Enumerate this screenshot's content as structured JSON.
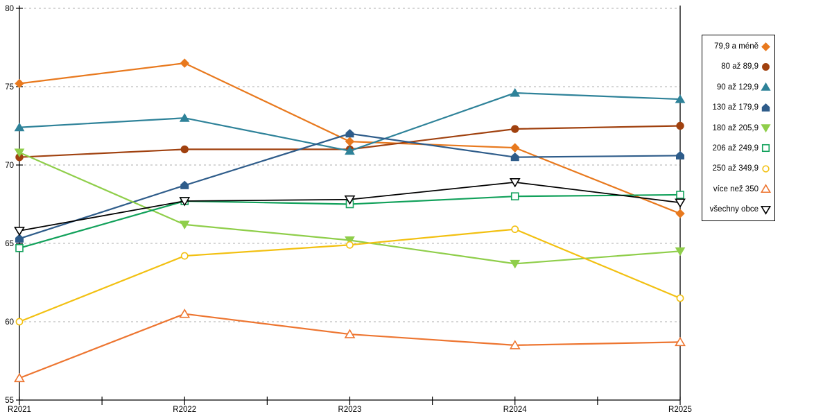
{
  "chart_data": {
    "type": "line",
    "title": "",
    "xlabel": "",
    "ylabel": "",
    "categories": [
      "R2021",
      "R2022",
      "R2023",
      "R2024",
      "R2025"
    ],
    "ylim": [
      55,
      80
    ],
    "yticks": [
      55,
      60,
      65,
      70,
      75,
      80
    ],
    "grid": "horizontal-dashed",
    "legend_position": "right",
    "gridline_color": "#ADADAD",
    "axis_color": "#000000",
    "series": [
      {
        "name": "79,9 a méně",
        "color": "#E8791E",
        "marker": "diamond",
        "fill": "solid",
        "values": [
          75.2,
          76.5,
          71.5,
          71.1,
          66.9
        ]
      },
      {
        "name": "80 až 89,9",
        "color": "#A0410F",
        "marker": "circle",
        "fill": "solid",
        "values": [
          70.5,
          71.0,
          71.0,
          72.3,
          72.5
        ]
      },
      {
        "name": "90 až 129,9",
        "color": "#2E8299",
        "marker": "triangle-up",
        "fill": "solid",
        "values": [
          72.4,
          73.0,
          70.9,
          74.6,
          74.2
        ]
      },
      {
        "name": "130 až 179,9",
        "color": "#2E5C8A",
        "marker": "pentagon",
        "fill": "solid",
        "values": [
          65.3,
          68.7,
          72.0,
          70.5,
          70.6
        ]
      },
      {
        "name": "180 až 205,9",
        "color": "#8FCE4A",
        "marker": "triangle-down",
        "fill": "solid",
        "values": [
          70.8,
          66.2,
          65.2,
          63.7,
          64.5
        ]
      },
      {
        "name": "206 až 249,9",
        "color": "#12A15B",
        "marker": "square",
        "fill": "open",
        "values": [
          64.7,
          67.7,
          67.5,
          68.0,
          68.1
        ]
      },
      {
        "name": "250 až 349,9",
        "color": "#F2C011",
        "marker": "circle",
        "fill": "open",
        "values": [
          60.0,
          64.2,
          64.9,
          65.9,
          61.5
        ]
      },
      {
        "name": "více než 350",
        "color": "#ED7530",
        "marker": "triangle-up",
        "fill": "open",
        "values": [
          56.4,
          60.5,
          59.2,
          58.5,
          58.7
        ]
      },
      {
        "name": "všechny obce",
        "color": "#000000",
        "marker": "triangle-down",
        "fill": "open",
        "values": [
          65.8,
          67.7,
          67.8,
          68.9,
          67.6
        ]
      }
    ]
  }
}
